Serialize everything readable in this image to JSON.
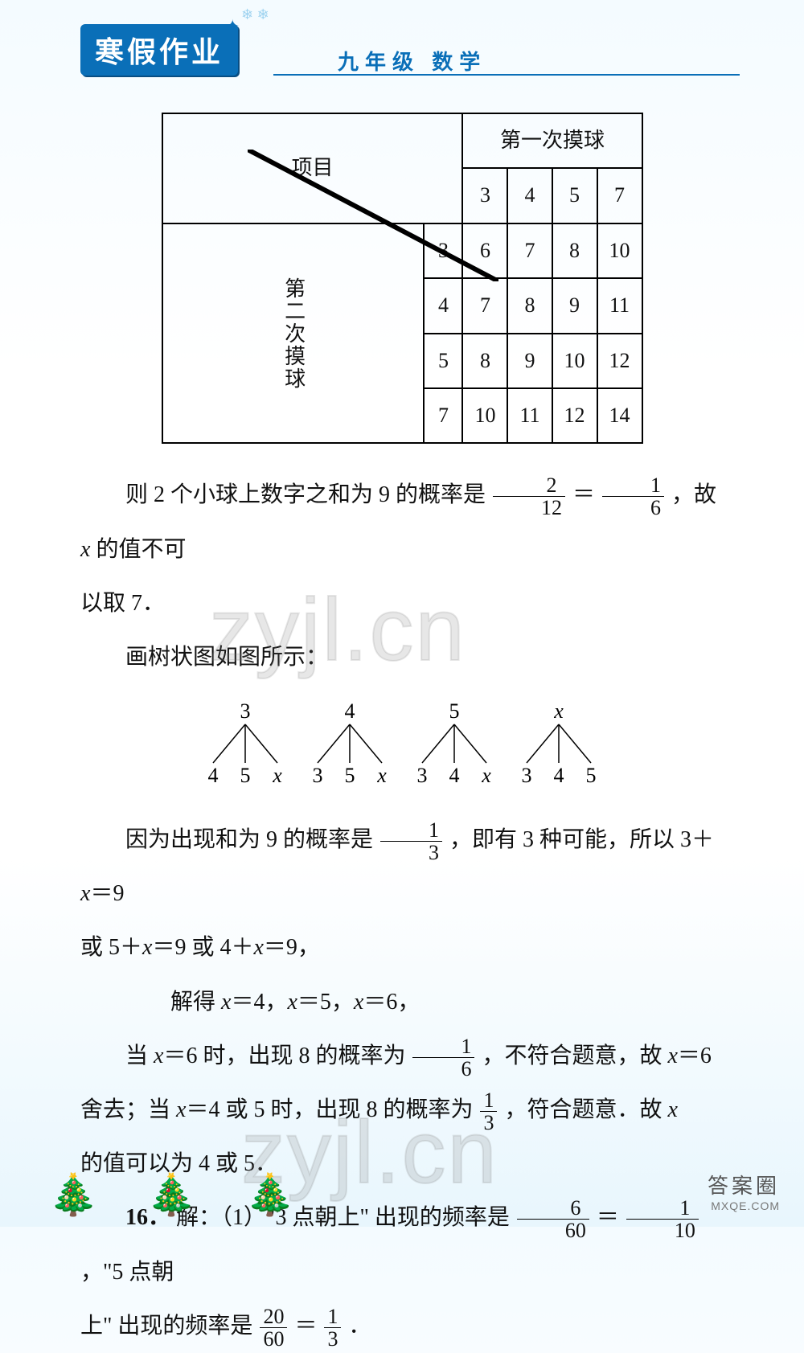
{
  "header": {
    "badge": "寒假作业",
    "subtitle": "九年级  数学"
  },
  "table": {
    "corner": "项目",
    "col_group": "第一次摸球",
    "row_group": "第二次摸球",
    "cols": [
      "3",
      "4",
      "5",
      "7"
    ],
    "rows": [
      {
        "h": "3",
        "c": [
          "6",
          "7",
          "8",
          "10"
        ]
      },
      {
        "h": "4",
        "c": [
          "7",
          "8",
          "9",
          "11"
        ]
      },
      {
        "h": "5",
        "c": [
          "8",
          "9",
          "10",
          "12"
        ]
      },
      {
        "h": "7",
        "c": [
          "10",
          "11",
          "12",
          "14"
        ]
      }
    ],
    "strike_color": "#000000",
    "strike_width": 6
  },
  "body": {
    "p1a": "则 2 个小球上数字之和为 9 的概率是",
    "f1": {
      "num": "2",
      "den": "12"
    },
    "eq1": "＝",
    "f2": {
      "num": "1",
      "den": "6"
    },
    "p1b": "，故 ",
    "x": "x",
    "p1c": " 的值不可",
    "p1d": "以取 7．",
    "p2": "画树状图如图所示：",
    "p3a": "因为出现和为 9 的概率是",
    "f3": {
      "num": "1",
      "den": "3"
    },
    "p3b": "，即有 3 种可能，所以 3＋",
    "p3c": "＝9",
    "p4a": "或 5＋",
    "p4b": "＝9 或 4＋",
    "p4c": "＝9，",
    "p5a": "解得 ",
    "p5b": "＝4，",
    "p5c": "＝5，",
    "p5d": "＝6，",
    "p6a": "当 ",
    "p6b": "＝6 时，出现 8 的概率为",
    "f4": {
      "num": "1",
      "den": "6"
    },
    "p6c": "，不符合题意，故 ",
    "p6d": "＝6",
    "p7a": "舍去；当 ",
    "p7b": "＝4 或 5 时，出现 8 的概率为",
    "f5": {
      "num": "1",
      "den": "3"
    },
    "p7c": "，符合题意．故 ",
    "p8": "的值可以为 4 或 5．",
    "q16a": "16．",
    "q16b": "解：（1）\"3 点朝上\" 出现的频率是",
    "f6": {
      "num": "6",
      "den": "60"
    },
    "q16c": "＝",
    "f7": {
      "num": "1",
      "den": "10"
    },
    "q16d": "，\"5 点朝",
    "q16e": "上\" 出现的频率是",
    "f8": {
      "num": "20",
      "den": "60"
    },
    "q16f": "＝",
    "f9": {
      "num": "1",
      "den": "3"
    },
    "q16g": "．"
  },
  "tree": {
    "roots": [
      "3",
      "4",
      "5",
      "x"
    ],
    "leaves": [
      [
        "4",
        "5",
        "x"
      ],
      [
        "3",
        "5",
        "x"
      ],
      [
        "3",
        "4",
        "x"
      ],
      [
        "3",
        "4",
        "5"
      ]
    ],
    "line_color": "#000000",
    "font_size": 26
  },
  "watermarks": {
    "w1": "zyjl.cn",
    "w2": "zyjl.cn"
  },
  "footer": {
    "logo1": "答案圈",
    "logo2": "MXQE.COM"
  },
  "colors": {
    "brand": "#0a6fb8",
    "bg_top": "#f4fbff",
    "bg_bottom": "#e8f6fd"
  }
}
